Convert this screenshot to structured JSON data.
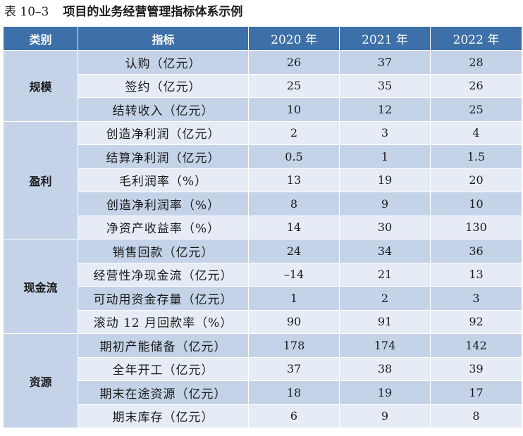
{
  "caption": {
    "number": "表 10–3",
    "title": "项目的业务经营管理指标体系示例"
  },
  "table": {
    "headers": [
      "类别",
      "指标",
      "2020 年",
      "2021 年",
      "2022 年"
    ],
    "groups": [
      {
        "category": "规模",
        "rows": [
          {
            "indicator": "认购（亿元）",
            "values": [
              "26",
              "37",
              "28"
            ]
          },
          {
            "indicator": "签约（亿元）",
            "values": [
              "25",
              "35",
              "26"
            ]
          },
          {
            "indicator": "结转收入（亿元）",
            "values": [
              "10",
              "12",
              "25"
            ]
          }
        ]
      },
      {
        "category": "盈利",
        "rows": [
          {
            "indicator": "创造净利润（亿元）",
            "values": [
              "2",
              "3",
              "4"
            ]
          },
          {
            "indicator": "结算净利润（亿元）",
            "values": [
              "0.5",
              "1",
              "1.5"
            ]
          },
          {
            "indicator": "毛利润率（%）",
            "values": [
              "13",
              "19",
              "20"
            ]
          },
          {
            "indicator": "创造净利润率（%）",
            "values": [
              "8",
              "9",
              "10"
            ]
          },
          {
            "indicator": "净资产收益率（%）",
            "values": [
              "14",
              "30",
              "130"
            ]
          }
        ]
      },
      {
        "category": "现金流",
        "rows": [
          {
            "indicator": "销售回款（亿元）",
            "values": [
              "24",
              "34",
              "36"
            ]
          },
          {
            "indicator": "经营性净现金流（亿元）",
            "values": [
              "–14",
              "21",
              "13"
            ]
          },
          {
            "indicator": "可动用资金存量（亿元）",
            "values": [
              "1",
              "2",
              "3"
            ]
          },
          {
            "indicator": "滚动 12 月回款率（%）",
            "values": [
              "90",
              "91",
              "92"
            ]
          }
        ]
      },
      {
        "category": "资源",
        "rows": [
          {
            "indicator": "期初产能储备（亿元）",
            "values": [
              "178",
              "174",
              "142"
            ]
          },
          {
            "indicator": "全年开工（亿元）",
            "values": [
              "37",
              "38",
              "39"
            ]
          },
          {
            "indicator": "期末在途资源（亿元）",
            "values": [
              "18",
              "19",
              "17"
            ]
          },
          {
            "indicator": "期末库存（亿元）",
            "values": [
              "6",
              "9",
              "8"
            ]
          }
        ]
      }
    ]
  },
  "colors": {
    "header_bg": "#3d6fa8",
    "row_dark": "#c5d3e8",
    "row_light": "#e6ecf5"
  }
}
